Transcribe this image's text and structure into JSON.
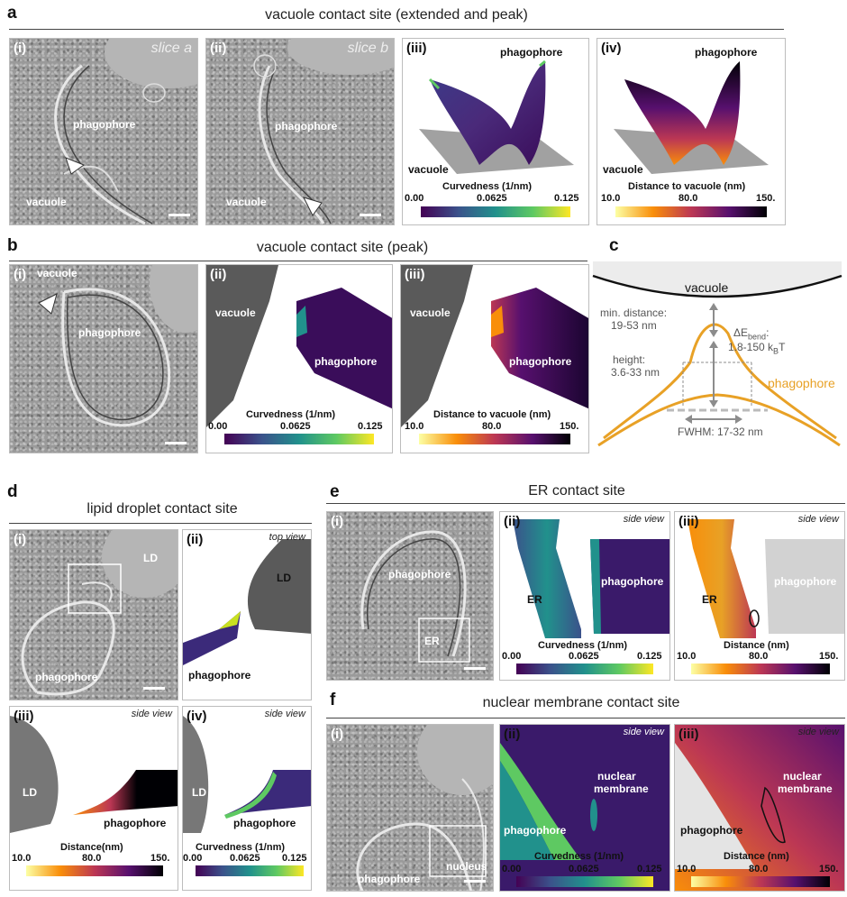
{
  "panel_a": {
    "letter": "a",
    "title": "vacuole contact site (extended and peak)",
    "i": {
      "label": "(i)",
      "slice": "slice a",
      "phagophore": "phagophore",
      "vacuole": "vacuole"
    },
    "ii": {
      "label": "(ii)",
      "slice": "slice b",
      "phagophore": "phagophore",
      "vacuole": "vacuole"
    },
    "iii": {
      "label": "(iii)",
      "phagophore": "phagophore",
      "vacuole": "vacuole",
      "colorbar_title": "Curvedness (1/nm)",
      "ticks": [
        "0.00",
        "0.0625",
        "0.125"
      ]
    },
    "iv": {
      "label": "(iv)",
      "phagophore": "phagophore",
      "vacuole": "vacuole",
      "colorbar_title": "Distance to vacuole (nm)",
      "ticks": [
        "10.0",
        "80.0",
        "150."
      ]
    }
  },
  "panel_b": {
    "letter": "b",
    "title": "vacuole contact site (peak)",
    "i": {
      "label": "(i)",
      "vacuole": "vacuole",
      "phagophore": "phagophore"
    },
    "ii": {
      "label": "(ii)",
      "vacuole": "vacuole",
      "phagophore": "phagophore",
      "colorbar_title": "Curvedness (1/nm)",
      "ticks": [
        "0.00",
        "0.0625",
        "0.125"
      ]
    },
    "iii": {
      "label": "(iii)",
      "vacuole": "vacuole",
      "phagophore": "phagophore",
      "colorbar_title": "Distance to vacuole (nm)",
      "ticks": [
        "10.0",
        "80.0",
        "150."
      ]
    }
  },
  "panel_c": {
    "letter": "c",
    "vacuole": "vacuole",
    "min_distance_label": "min. distance:",
    "min_distance_value": "19-53 nm",
    "height_label": "height:",
    "height_value": "3.6-33 nm",
    "bend_label": "ΔE",
    "bend_sub": "bend",
    "bend_colon": ":",
    "bend_value": "1.8-150 k",
    "bend_kb_sub": "B",
    "bend_unit": "T",
    "phagophore": "phagophore",
    "fwhm": "FWHM: 17-32 nm",
    "colors": {
      "orange": "#e8a126",
      "gray": "#8c8c8c"
    }
  },
  "panel_d": {
    "letter": "d",
    "title": "lipid droplet contact site",
    "i": {
      "label": "(i)",
      "ld": "LD",
      "phagophore": "phagophore"
    },
    "ii": {
      "label": "(ii)",
      "view": "top view",
      "ld": "LD",
      "phagophore": "phagophore"
    },
    "iii": {
      "label": "(iii)",
      "view": "side view",
      "ld": "LD",
      "phagophore": "phagophore",
      "colorbar_title": "Distance(nm)",
      "ticks": [
        "10.0",
        "80.0",
        "150."
      ]
    },
    "iv": {
      "label": "(iv)",
      "view": "side view",
      "ld": "LD",
      "phagophore": "phagophore",
      "colorbar_title": "Curvedness (1/nm)",
      "ticks": [
        "0.00",
        "0.0625",
        "0.125"
      ]
    }
  },
  "panel_e": {
    "letter": "e",
    "title": "ER contact site",
    "i": {
      "label": "(i)",
      "phagophore": "phagophore",
      "er": "ER"
    },
    "ii": {
      "label": "(ii)",
      "view": "side view",
      "er": "ER",
      "phagophore": "phagophore",
      "colorbar_title": "Curvedness (1/nm)",
      "ticks": [
        "0.00",
        "0.0625",
        "0.125"
      ]
    },
    "iii": {
      "label": "(iii)",
      "view": "side view",
      "er": "ER",
      "phagophore": "phagophore",
      "colorbar_title": "Distance (nm)",
      "ticks": [
        "10.0",
        "80.0",
        "150."
      ]
    }
  },
  "panel_f": {
    "letter": "f",
    "title": "nuclear membrane contact site",
    "i": {
      "label": "(i)",
      "phagophore": "phagophore",
      "nucleus": "nucleus"
    },
    "ii": {
      "label": "(ii)",
      "view": "side view",
      "nuclear": "nuclear",
      "membrane": "membrane",
      "phagophore": "phagophore",
      "colorbar_title": "Curvedness (1/nm)",
      "ticks": [
        "0.00",
        "0.0625",
        "0.125"
      ]
    },
    "iii": {
      "label": "(iii)",
      "view": "side view",
      "nuclear": "nuclear",
      "membrane": "membrane",
      "phagophore": "phagophore",
      "colorbar_title": "Distance (nm)",
      "ticks": [
        "10.0",
        "80.0",
        "150."
      ]
    }
  }
}
